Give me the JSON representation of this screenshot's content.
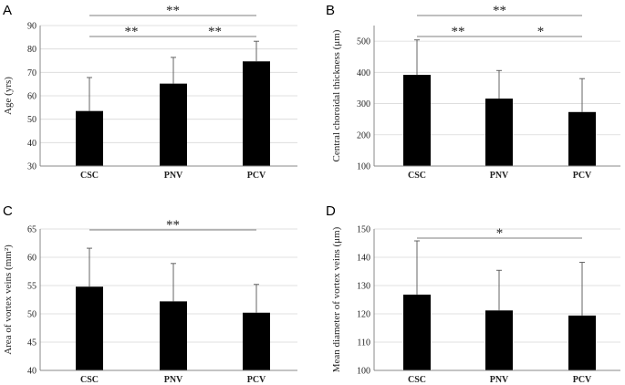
{
  "chart_data": [
    {
      "panel": "A",
      "type": "bar",
      "categories": [
        "CSC",
        "PNV",
        "PCV"
      ],
      "values": [
        53.5,
        65.2,
        74.7
      ],
      "error": [
        14.3,
        11.2,
        8.6
      ],
      "ylabel": "Age (yrs)",
      "ylim": [
        30,
        90
      ],
      "yticks": [
        30,
        40,
        50,
        60,
        70,
        80,
        90
      ],
      "significance": [
        {
          "from": 0,
          "to": 2,
          "label": "**"
        },
        {
          "from": 0,
          "to": 1,
          "label": "**"
        },
        {
          "from": 1,
          "to": 2,
          "label": "**"
        }
      ]
    },
    {
      "panel": "B",
      "type": "bar",
      "categories": [
        "CSC",
        "PNV",
        "PCV"
      ],
      "values": [
        392,
        316,
        273
      ],
      "error": [
        112,
        90,
        107
      ],
      "ylabel": "Central choroidal thickness (μm)",
      "ylim": [
        100,
        550
      ],
      "yticks": [
        100,
        200,
        300,
        400,
        500
      ],
      "significance": [
        {
          "from": 0,
          "to": 2,
          "label": "**"
        },
        {
          "from": 0,
          "to": 1,
          "label": "**"
        },
        {
          "from": 1,
          "to": 2,
          "label": "*"
        }
      ]
    },
    {
      "panel": "C",
      "type": "bar",
      "categories": [
        "CSC",
        "PNV",
        "PCV"
      ],
      "values": [
        54.8,
        52.2,
        50.2
      ],
      "error": [
        6.8,
        6.7,
        5.0
      ],
      "ylabel": "Area of vortex veins (mm²)",
      "ylim": [
        40,
        65
      ],
      "yticks": [
        40,
        45,
        50,
        55,
        60,
        65
      ],
      "significance": [
        {
          "from": 0,
          "to": 2,
          "label": "**"
        }
      ]
    },
    {
      "panel": "D",
      "type": "bar",
      "categories": [
        "CSC",
        "PNV",
        "PCV"
      ],
      "values": [
        126.8,
        121.2,
        119.4
      ],
      "error": [
        19.0,
        14.2,
        18.8
      ],
      "ylabel": "Mean diameter of vortex veins (μm)",
      "ylim": [
        100,
        150
      ],
      "yticks": [
        100,
        110,
        120,
        130,
        140,
        150
      ],
      "significance": [
        {
          "from": 0,
          "to": 2,
          "label": "*"
        }
      ]
    }
  ],
  "colors": {
    "bar": "#000000",
    "axis": "#888888",
    "gridline": "#d9d9d9",
    "bracket": "#7f7f7f",
    "text": "#222222"
  }
}
